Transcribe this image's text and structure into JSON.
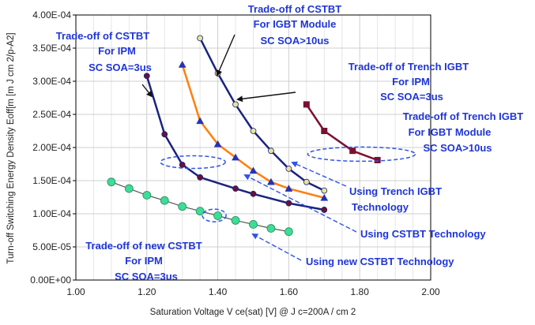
{
  "chart_data": {
    "type": "line",
    "xlabel": "Saturation Voltage V ce(sat) [V] @ J c=200A / cm 2",
    "ylabel": "Turn-off Switching Energy Density   Eoff[m [m J cm 2/p-A2]",
    "xlim": [
      1.0,
      2.0
    ],
    "ylim": [
      0.0,
      0.0004
    ],
    "grid": true,
    "x_ticks": [
      1.0,
      1.2,
      1.4,
      1.6,
      1.8,
      2.0
    ],
    "x_tick_labels": [
      "1.00",
      "1.20",
      "1.40",
      "1.60",
      "1.80",
      "2.00"
    ],
    "y_ticks": [
      0.0,
      5e-05,
      0.0001,
      0.00015,
      0.0002,
      0.00025,
      0.0003,
      0.00035,
      0.0004
    ],
    "y_tick_labels": [
      "0.00E+00",
      "5.00E-05",
      "1.00E-04",
      "1.50E-04",
      "2.00E-04",
      "2.50E-04",
      "3.00E-04",
      "3.50E-04",
      "4.00E-04"
    ],
    "series": [
      {
        "color": "#1a237e",
        "marker": "circle",
        "marker_color": "#6b1133",
        "points": [
          [
            1.2,
            0.000308
          ],
          [
            1.25,
            0.00022
          ],
          [
            1.3,
            0.000174
          ],
          [
            1.35,
            0.000155
          ],
          [
            1.45,
            0.000138
          ],
          [
            1.5,
            0.00013
          ],
          [
            1.6,
            0.000116
          ],
          [
            1.7,
            0.000106
          ]
        ]
      },
      {
        "color": "#ff7f0e",
        "marker": "triangle",
        "marker_color": "#2433b8",
        "points": [
          [
            1.3,
            0.000325
          ],
          [
            1.35,
            0.00024
          ],
          [
            1.4,
            0.000205
          ],
          [
            1.45,
            0.000185
          ],
          [
            1.5,
            0.000165
          ],
          [
            1.55,
            0.000148
          ],
          [
            1.6,
            0.000138
          ],
          [
            1.7,
            0.000124
          ]
        ]
      },
      {
        "color": "#1a237e",
        "marker": "circle",
        "marker_color": "#e8e29a",
        "points": [
          [
            1.35,
            0.000365
          ],
          [
            1.4,
            0.000312
          ],
          [
            1.45,
            0.000265
          ],
          [
            1.5,
            0.000225
          ],
          [
            1.55,
            0.000195
          ],
          [
            1.6,
            0.000168
          ],
          [
            1.65,
            0.000148
          ],
          [
            1.7,
            0.000135
          ]
        ]
      },
      {
        "color": "#7b1030",
        "marker": "square",
        "marker_color": "#7b1030",
        "points": [
          [
            1.65,
            0.000265
          ],
          [
            1.7,
            0.000225
          ],
          [
            1.78,
            0.000195
          ],
          [
            1.85,
            0.000181
          ]
        ]
      },
      {
        "color": "#555555",
        "marker": "circle",
        "marker_color": "#3ddc97",
        "points": [
          [
            1.1,
            0.000148
          ],
          [
            1.15,
            0.000138
          ],
          [
            1.2,
            0.000128
          ],
          [
            1.25,
            0.00012
          ],
          [
            1.3,
            0.000111
          ],
          [
            1.35,
            0.000104
          ],
          [
            1.4,
            9.7e-05
          ],
          [
            1.45,
            9e-05
          ],
          [
            1.5,
            8.4e-05
          ],
          [
            1.55,
            7.8e-05
          ],
          [
            1.6,
            7.3e-05
          ]
        ]
      }
    ],
    "annotations": [
      {
        "lines": [
          "Trade-off of CSTBT",
          "For IPM",
          "SC SOA=3us"
        ],
        "color": "#1f35d6"
      },
      {
        "lines": [
          "Trade-off of CSTBT",
          "For IGBT Module",
          "SC SOA>10us"
        ],
        "color": "#1f35d6"
      },
      {
        "lines": [
          "Trade-off of Trench IGBT",
          "For IPM",
          "SC SOA=3us"
        ],
        "color": "#1f35d6"
      },
      {
        "lines": [
          "Trade-off of Trench IGBT",
          "For IGBT Module",
          "SC SOA>10us"
        ],
        "color": "#1f35d6"
      },
      {
        "lines": [
          "Using Trench IGBT",
          "Technology"
        ],
        "color": "#1f35d6"
      },
      {
        "lines": [
          "Using CSTBT Technology"
        ],
        "color": "#1f35d6"
      },
      {
        "lines": [
          "Using new CSTBT Technology"
        ],
        "color": "#1f35d6"
      },
      {
        "lines": [
          "Trade-off of new CSTBT",
          "For IPM",
          "SC SOA=3us"
        ],
        "color": "#1f35d6"
      }
    ],
    "colors": {
      "plot_background": "#ffffff",
      "grid": "#cfcfcf",
      "annotation_text": "#1f35d6",
      "pointer": "#111111",
      "highlight_ellipse": "#2f54e8"
    }
  }
}
